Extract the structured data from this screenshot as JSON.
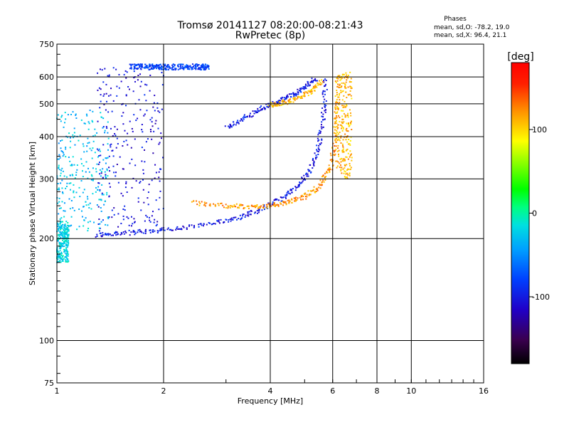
{
  "header": {
    "title_line1": "Tromsø 20141127 08:20:00-08:21:43",
    "title_line2": "RwPretec (8p)",
    "phases_label": "Phases",
    "phase_o": "mean, sd,O: -78.2, 19.0",
    "phase_x": "mean, sd,X:  96.4, 21.1"
  },
  "chart_data": {
    "type": "scatter",
    "xlabel": "Frequency [MHz]",
    "ylabel": "Stationary phase Virtual Height [km]",
    "xscale": "log",
    "yscale": "log",
    "xlim": [
      1,
      16
    ],
    "ylim": [
      75,
      750
    ],
    "x_ticks": [
      1,
      2,
      4,
      6,
      8,
      10,
      16
    ],
    "x_tick_labels": [
      "1",
      "2",
      "4",
      "6",
      "8",
      "10",
      "16"
    ],
    "y_ticks": [
      75,
      100,
      200,
      300,
      400,
      500,
      600,
      750
    ],
    "y_tick_labels": [
      "75",
      "100",
      "200",
      "300",
      "400",
      "500",
      "600",
      "750"
    ],
    "grid": true,
    "colorbar": {
      "label": "[deg]",
      "range": [
        -180,
        180
      ],
      "ticks": [
        100,
        0,
        -100
      ],
      "tick_labels": [
        "100",
        "0",
        "-100"
      ]
    },
    "traces": [
      {
        "kind": "E-layer blob",
        "x_range": [
          1.0,
          1.08
        ],
        "y_range": [
          170,
          225
        ],
        "phase": -20
      },
      {
        "kind": "O-mode lower F trace",
        "x": [
          1.3,
          1.5,
          1.8,
          2.2,
          2.8,
          3.3,
          3.8,
          4.3,
          4.8,
          5.2,
          5.5,
          5.65,
          5.75
        ],
        "y": [
          205,
          207,
          210,
          214,
          222,
          232,
          245,
          262,
          285,
          320,
          380,
          470,
          600
        ],
        "phase": -100
      },
      {
        "kind": "X-mode lower F trace",
        "x": [
          2.4,
          3.0,
          3.5,
          4.0,
          4.5,
          5.0,
          5.5,
          5.9,
          6.1,
          6.2
        ],
        "y": [
          255,
          250,
          248,
          250,
          256,
          266,
          285,
          320,
          400,
          540
        ],
        "phase": 120
      },
      {
        "kind": "X-mode F trace",
        "x_range": [
          6.1,
          6.8
        ],
        "y_range": [
          300,
          620
        ],
        "phase": 110
      },
      {
        "kind": "Upper O-mode trace",
        "x": [
          3.0,
          3.4,
          3.8,
          4.2,
          4.6,
          5.0,
          5.4
        ],
        "y": [
          425,
          455,
          485,
          505,
          530,
          560,
          595
        ],
        "phase": -100
      },
      {
        "kind": "Upper X-mode trace",
        "x": [
          4.0,
          4.4,
          4.8,
          5.2,
          5.6
        ],
        "y": [
          495,
          505,
          520,
          545,
          585
        ],
        "phase": 110
      },
      {
        "kind": "Spread F (1.3–2.0 MHz)",
        "x_range": [
          1.3,
          2.0
        ],
        "y_range": [
          210,
          650
        ],
        "phase": -105
      },
      {
        "kind": "Low frequency spread",
        "x_range": [
          1.0,
          1.4
        ],
        "y_range": [
          210,
          480
        ],
        "phase": -30
      },
      {
        "kind": "Top trace",
        "x_range": [
          1.6,
          2.7
        ],
        "y_range": [
          630,
          655
        ],
        "phase": -80
      }
    ]
  }
}
